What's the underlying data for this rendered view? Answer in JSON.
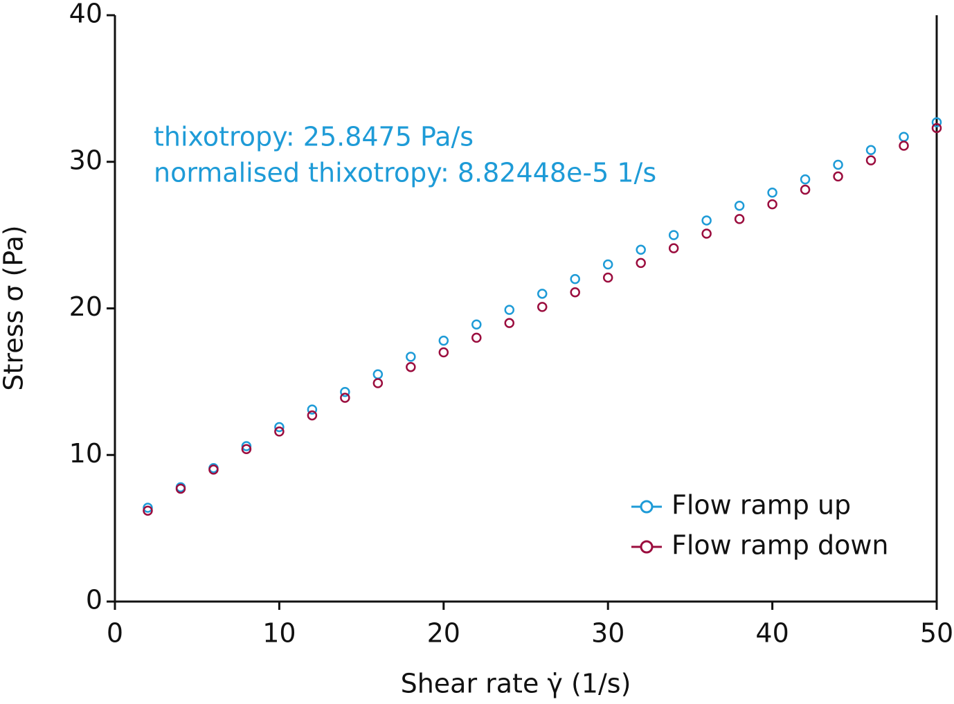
{
  "chart_data": {
    "type": "scatter",
    "x_label": "Shear rate γ̇ (1/s)",
    "y_label": "Stress σ (Pa)",
    "annotations": [
      "thixotropy: 25.8475 Pa/s",
      "normalised thixotropy: 8.82448e-5 1/s"
    ],
    "annotation_color": "#1e9bd7",
    "xlim": [
      0,
      50
    ],
    "xticks": [
      0,
      10,
      20,
      30,
      40,
      50
    ],
    "ylim": [
      0,
      40
    ],
    "yticks": [
      0,
      10,
      20,
      30,
      40
    ],
    "legend": "lower right",
    "x": [
      2,
      4,
      6,
      8,
      10,
      12,
      14,
      16,
      18,
      20,
      22,
      24,
      26,
      28,
      30,
      32,
      34,
      36,
      38,
      40,
      42,
      44,
      46,
      48,
      50
    ],
    "series": [
      {
        "name": "Flow ramp up",
        "color": "#1e9bd7",
        "values": [
          6.4,
          7.8,
          9.1,
          10.6,
          11.9,
          13.1,
          14.3,
          15.5,
          16.7,
          17.8,
          18.9,
          19.9,
          21.0,
          22.0,
          23.0,
          24.0,
          25.0,
          26.0,
          27.0,
          27.9,
          28.8,
          29.8,
          30.8,
          31.7,
          32.7
        ]
      },
      {
        "name": "Flow ramp down",
        "color": "#9b0d3e",
        "values": [
          6.2,
          7.7,
          9.0,
          10.4,
          11.6,
          12.7,
          13.9,
          14.9,
          16.0,
          17.0,
          18.0,
          19.0,
          20.1,
          21.1,
          22.1,
          23.1,
          24.1,
          25.1,
          26.1,
          27.1,
          28.1,
          29.0,
          30.1,
          31.1,
          32.3
        ]
      }
    ]
  }
}
